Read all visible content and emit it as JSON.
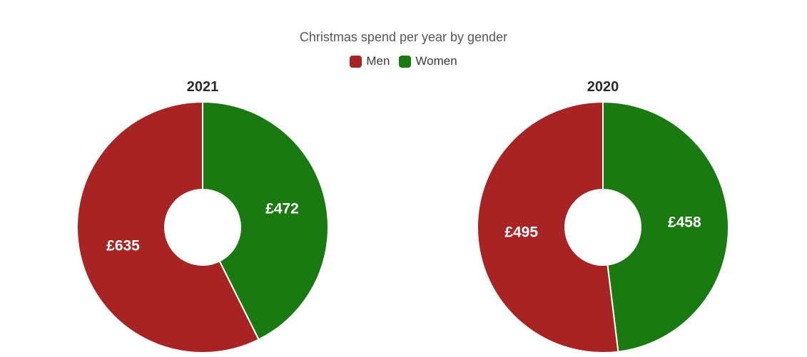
{
  "chart": {
    "title_color": "#575757",
    "year_label_color": "#2b2b2b",
    "legend_text_color": "#3a3a3a",
    "value_label_color": "#ffffff",
    "background_color": "#ffffff"
  },
  "chart_data": {
    "type": "pie",
    "variant": "donut",
    "title": "Christmas spend per year by gender",
    "currency": "£",
    "legend_position": "top",
    "donut_hole_ratio": 0.3,
    "series_colors": {
      "Men": "#a82424",
      "Women": "#187a10"
    },
    "legend": [
      {
        "label": "Men",
        "color": "#a82424"
      },
      {
        "label": "Women",
        "color": "#187a10"
      }
    ],
    "charts": [
      {
        "year": "2021",
        "slices": [
          {
            "label": "Men",
            "value": 635,
            "display": "£635"
          },
          {
            "label": "Women",
            "value": 472,
            "display": "£472"
          }
        ]
      },
      {
        "year": "2020",
        "slices": [
          {
            "label": "Men",
            "value": 495,
            "display": "£495"
          },
          {
            "label": "Women",
            "value": 458,
            "display": "£458"
          }
        ]
      }
    ]
  }
}
